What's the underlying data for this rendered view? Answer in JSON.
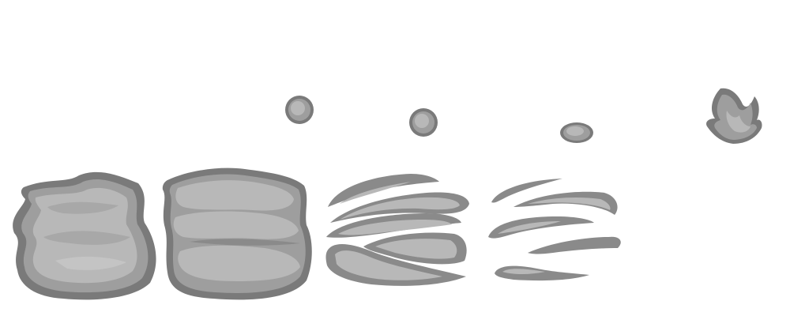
{
  "sheet": {
    "title": "",
    "background": "#ffffff",
    "palette": {
      "outline": "#7a7a7a",
      "shadow": "#959595",
      "body": "#b3b3b3",
      "highlight": "#c8c8c8"
    },
    "frames": [
      {
        "id": 1,
        "kind": "smoke-cloud-full",
        "has_puff": false
      },
      {
        "id": 2,
        "kind": "smoke-cloud-layered",
        "has_puff": true
      },
      {
        "id": 3,
        "kind": "smoke-streaks",
        "has_puff": true
      },
      {
        "id": 4,
        "kind": "smoke-wisps",
        "has_puff": true
      },
      {
        "id": 5,
        "kind": "smoke-dissipated",
        "has_puff": false
      }
    ],
    "flame_icon": "flame-icon"
  }
}
